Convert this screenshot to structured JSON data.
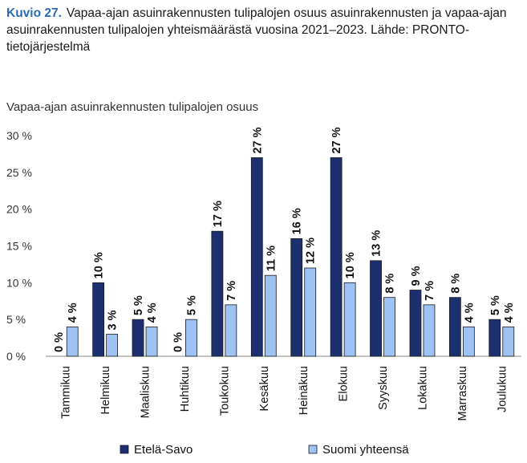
{
  "figure": {
    "label": "Kuvio 27.",
    "caption": "Vapaa-ajan asuinrakennusten tulipalojen osuus asuinrakennusten ja vapaa-ajan asuinrakennusten tulipalojen yhteismäärästä vuosina 2021–2023. Lähde: PRONTO-tietojärjestelmä"
  },
  "colors": {
    "etela_savo": "#1c2f6e",
    "suomi": "#9ec2f3",
    "bar_stroke": "#1a1a1a",
    "axis": "#8a8a8a"
  },
  "chart_data": {
    "type": "bar",
    "ylabel": "Vapaa-ajan asuinrakennusten tulipalojen osuus",
    "ylim": [
      0,
      30
    ],
    "yticks": [
      "0 %",
      "5 %",
      "10 %",
      "15 %",
      "20 %",
      "25 %",
      "30 %"
    ],
    "categories": [
      "Tammikuu",
      "Helmikuu",
      "Maaliskuu",
      "Huhtikuu",
      "Toukokuu",
      "Kesäkuu",
      "Heinäkuu",
      "Elokuu",
      "Syyskuu",
      "Lokakuu",
      "Marraskuu",
      "Joulukuu"
    ],
    "series": [
      {
        "name": "Etelä-Savo",
        "values": [
          0,
          10,
          5,
          0,
          17,
          27,
          16,
          27,
          13,
          9,
          8,
          5
        ],
        "labels": [
          "0 %",
          "10 %",
          "5 %",
          "0 %",
          "17 %",
          "27 %",
          "16 %",
          "27 %",
          "13 %",
          "9 %",
          "8 %",
          "5 %"
        ]
      },
      {
        "name": "Suomi yhteensä",
        "values": [
          4,
          3,
          4,
          5,
          7,
          11,
          12,
          10,
          8,
          7,
          4,
          4
        ],
        "labels": [
          "4 %",
          "3 %",
          "4 %",
          "5 %",
          "7 %",
          "11 %",
          "12 %",
          "10 %",
          "8 %",
          "7 %",
          "4 %",
          "4 %"
        ]
      }
    ],
    "legend_position": "bottom",
    "grid": false
  }
}
